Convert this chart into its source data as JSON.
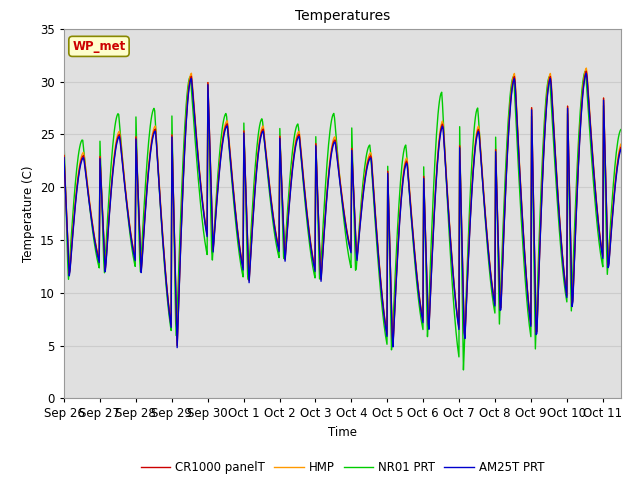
{
  "title": "Temperatures",
  "xlabel": "Time",
  "ylabel": "Temperature (C)",
  "ylim": [
    0,
    35
  ],
  "annotation": "WP_met",
  "annotation_color": "#cc0000",
  "annotation_bg": "#ffffcc",
  "annotation_border": "#888800",
  "series_colors": {
    "CR1000 panelT": "#cc0000",
    "HMP": "#ff9900",
    "NR01 PRT": "#00cc00",
    "AM25T PRT": "#0000cc"
  },
  "x_tick_labels": [
    "Sep 26",
    "Sep 27",
    "Sep 28",
    "Sep 29",
    "Sep 30",
    "Oct 1",
    "Oct 2",
    "Oct 3",
    "Oct 4",
    "Oct 5",
    "Oct 6",
    "Oct 7",
    "Oct 8",
    "Oct 9",
    "Oct 10",
    "Oct 11"
  ],
  "grid_color": "#cccccc",
  "plot_bg": "#e8e8e8",
  "linewidth": 1.0,
  "peaks_base": [
    23.0,
    25.0,
    25.5,
    30.5,
    26.0,
    25.5,
    25.0,
    24.5,
    23.0,
    22.5,
    26.0,
    25.5,
    30.5,
    30.5,
    31.0,
    24.0
  ],
  "troughs_base": [
    11.5,
    12.0,
    12.0,
    5.0,
    14.0,
    11.0,
    13.0,
    11.0,
    13.0,
    4.5,
    6.0,
    5.0,
    7.5,
    5.0,
    8.0,
    12.0
  ],
  "peaks_nr01": [
    24.5,
    27.0,
    27.5,
    30.5,
    27.0,
    26.5,
    26.0,
    27.0,
    24.0,
    24.0,
    29.0,
    27.5,
    30.5,
    30.5,
    31.0,
    25.5
  ],
  "troughs_nr01": [
    11.0,
    11.5,
    11.5,
    5.0,
    12.5,
    10.5,
    12.5,
    10.5,
    11.5,
    4.0,
    5.5,
    2.5,
    7.0,
    4.5,
    8.0,
    11.5
  ]
}
